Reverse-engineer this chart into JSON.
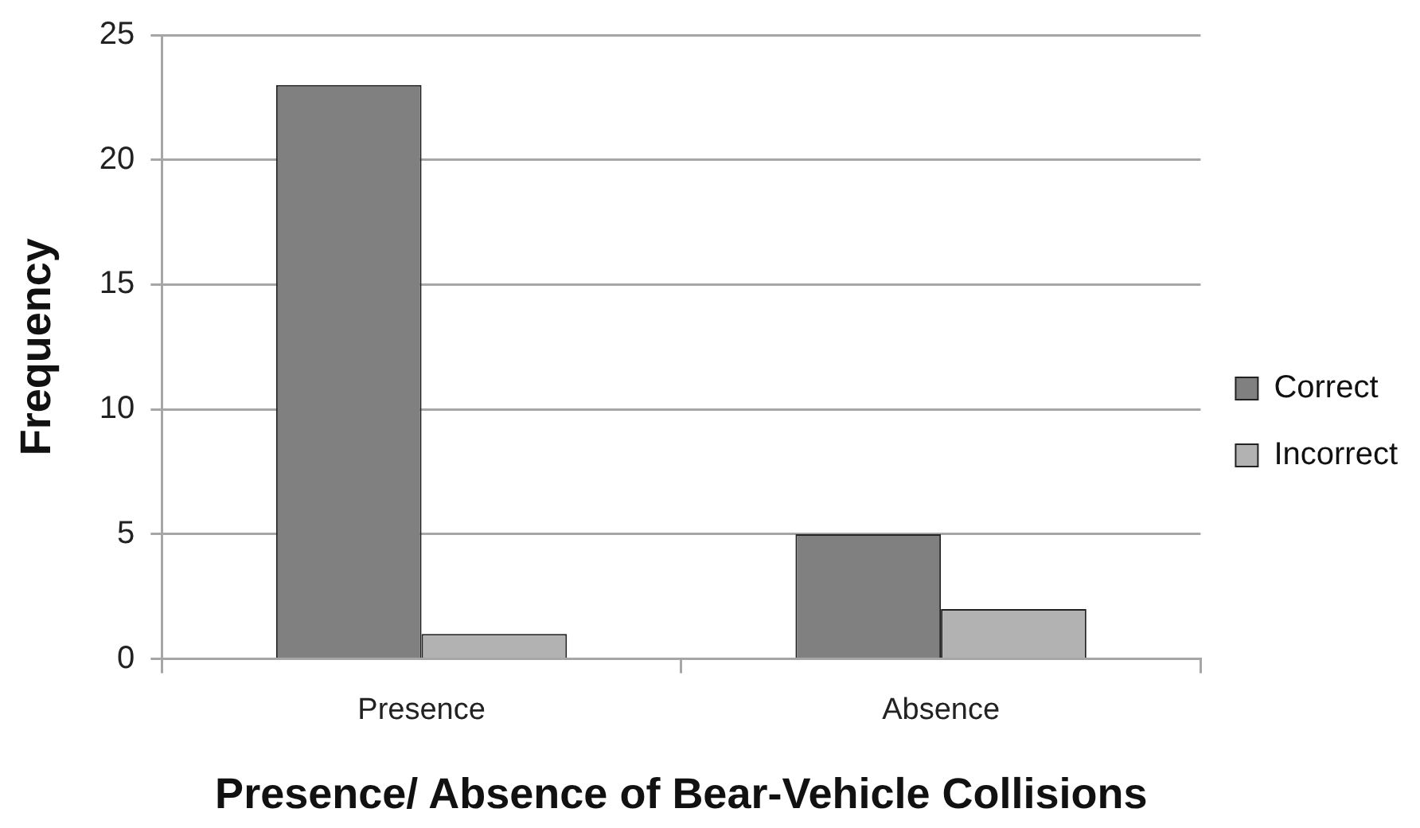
{
  "chart_data": {
    "type": "bar",
    "xlabel": "Presence/ Absence of Bear-Vehicle Collisions",
    "ylabel": "Frequency",
    "categories": [
      "Presence",
      "Absence"
    ],
    "series": [
      {
        "name": "Correct",
        "color": "#808080",
        "values": [
          23,
          5
        ]
      },
      {
        "name": "Incorrect",
        "color": "#b2b2b2",
        "values": [
          1,
          2
        ]
      }
    ],
    "ylim": [
      0,
      25
    ],
    "yticks": [
      0,
      5,
      10,
      15,
      20,
      25
    ],
    "grid": "y",
    "legend": "right"
  }
}
